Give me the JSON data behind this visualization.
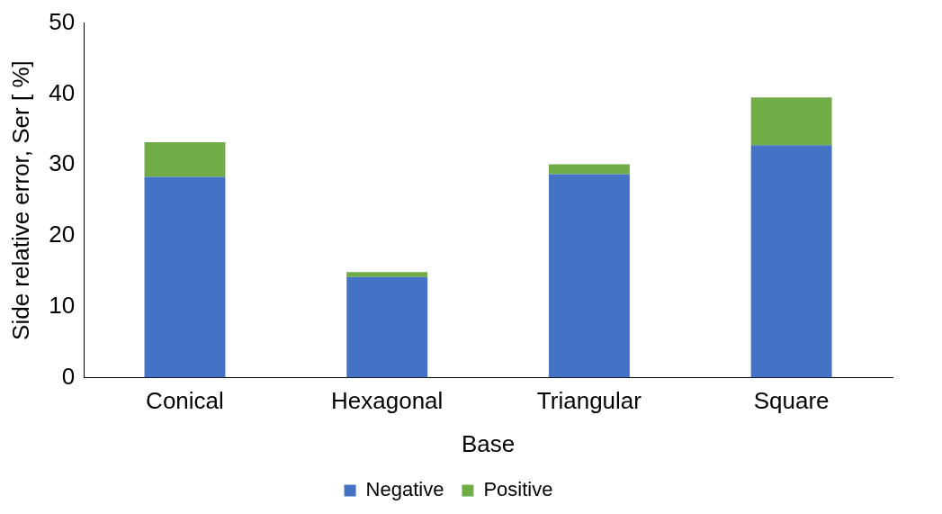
{
  "chart_data": {
    "type": "bar",
    "stacked": true,
    "xlabel": "Base",
    "ylabel": "Side relative error, Ser [ %]",
    "categories": [
      "Conical",
      "Hexagonal",
      "Triangular",
      "Square"
    ],
    "series": [
      {
        "name": "Negative",
        "color": "#4472c4",
        "values": [
          28.3,
          14.2,
          28.7,
          32.8
        ]
      },
      {
        "name": "Positive",
        "color": "#70ad47",
        "values": [
          4.9,
          0.7,
          1.4,
          6.7
        ]
      }
    ],
    "ylim": [
      0,
      50
    ],
    "yticks": [
      0,
      10,
      20,
      30,
      40,
      50
    ],
    "grid": false,
    "legend": "bottom"
  }
}
